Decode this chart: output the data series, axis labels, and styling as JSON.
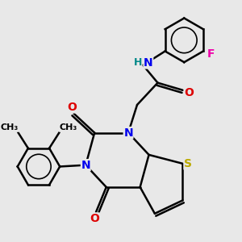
{
  "background_color": "#e8e8e8",
  "bond_color": "#000000",
  "bond_width": 1.8,
  "font_size": 10,
  "colors": {
    "N": "#0000ee",
    "O": "#dd0000",
    "S": "#bbaa00",
    "F": "#ee00aa",
    "H": "#008888",
    "C": "#000000"
  }
}
